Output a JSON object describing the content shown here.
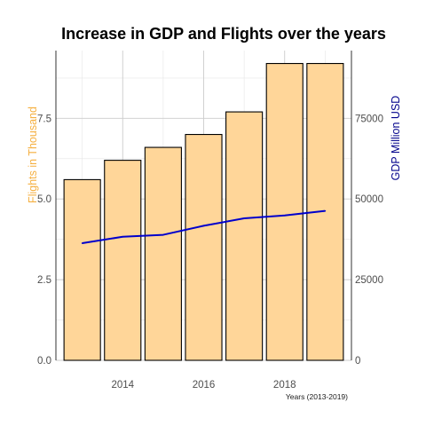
{
  "chart_data": {
    "type": "bar",
    "title": "Increase in GDP and Flights over the years",
    "xlabel": "Years (2013-2019)",
    "ylabel": "Flights in Thousand",
    "y2label": "GDP Million USD",
    "categories": [
      2013,
      2014,
      2015,
      2016,
      2017,
      2018,
      2019
    ],
    "x_tick_labels": [
      "2014",
      "2016",
      "2018"
    ],
    "x_ticks": [
      2014,
      2016,
      2018
    ],
    "xlim": [
      2012.35,
      2019.65
    ],
    "ylim": [
      0,
      9.6
    ],
    "y_tick_labels": [
      "0.0",
      "2.5",
      "5.0",
      "7.5"
    ],
    "y_ticks": [
      0,
      2.5,
      5.0,
      7.5
    ],
    "y2lim": [
      0,
      96000
    ],
    "y2_tick_labels": [
      "0",
      "25000",
      "50000",
      "75000"
    ],
    "y2_ticks": [
      0,
      25000,
      50000,
      75000
    ],
    "grid": true,
    "series": [
      {
        "type": "bar",
        "axis": "left",
        "values": [
          5.6,
          6.2,
          6.6,
          7.0,
          7.7,
          9.2,
          9.2
        ]
      },
      {
        "type": "line",
        "axis": "right",
        "values": [
          36300,
          38300,
          38900,
          41700,
          44000,
          44900,
          46300
        ]
      }
    ],
    "colors": {
      "bar_fill": "#FFD699",
      "bar_stroke": "#000000",
      "line": "#0000CC",
      "ylabel": "#F5B041",
      "y2label": "#00008B",
      "grid_major": "#CCCCCC",
      "grid_minor": "#E6E6E6",
      "axis_line": "#000000"
    }
  }
}
